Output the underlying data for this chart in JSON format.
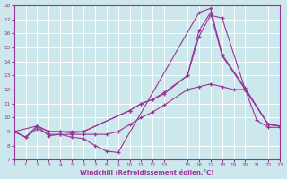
{
  "xlabel": "Windchill (Refroidissement éolien,°C)",
  "xlim": [
    0,
    23
  ],
  "ylim": [
    7,
    18
  ],
  "xticks": [
    0,
    1,
    2,
    3,
    4,
    5,
    6,
    7,
    8,
    9,
    10,
    11,
    12,
    13,
    15,
    16,
    17,
    18,
    19,
    20,
    21,
    22,
    23
  ],
  "yticks": [
    7,
    8,
    9,
    10,
    11,
    12,
    13,
    14,
    15,
    16,
    17,
    18
  ],
  "bg_color": "#cde8ec",
  "line_color": "#993399",
  "grid_color": "#ffffff",
  "lines": [
    {
      "x": [
        0,
        1,
        2,
        3,
        4,
        5,
        6,
        7,
        8,
        9,
        16,
        17,
        18,
        20,
        22,
        23
      ],
      "y": [
        9.0,
        8.6,
        9.4,
        8.7,
        8.8,
        8.6,
        8.5,
        8.0,
        7.6,
        7.5,
        17.5,
        17.8,
        14.5,
        12.1,
        9.5,
        9.4
      ]
    },
    {
      "x": [
        0,
        1,
        2,
        3,
        4,
        5,
        6,
        10,
        11,
        12,
        13,
        15,
        16,
        17,
        18,
        20,
        22,
        23
      ],
      "y": [
        9.0,
        8.6,
        9.4,
        9.0,
        9.0,
        8.9,
        9.0,
        10.5,
        11.0,
        11.3,
        11.7,
        13.0,
        15.8,
        17.3,
        17.1,
        12.0,
        9.5,
        9.4
      ]
    },
    {
      "x": [
        0,
        2,
        3,
        4,
        5,
        6,
        10,
        11,
        12,
        13,
        15,
        16,
        17,
        18,
        20,
        22,
        23
      ],
      "y": [
        9.0,
        9.4,
        9.0,
        9.0,
        9.0,
        9.0,
        10.5,
        11.0,
        11.3,
        11.8,
        13.0,
        16.2,
        17.5,
        14.4,
        12.0,
        9.5,
        9.4
      ]
    },
    {
      "x": [
        0,
        1,
        2,
        3,
        4,
        5,
        6,
        7,
        8,
        9,
        10,
        11,
        12,
        13,
        15,
        16,
        17,
        18,
        19,
        20,
        21,
        22,
        23
      ],
      "y": [
        9.0,
        8.6,
        9.2,
        8.8,
        8.8,
        8.8,
        8.8,
        8.8,
        8.8,
        9.0,
        9.5,
        10.0,
        10.4,
        10.9,
        12.0,
        12.2,
        12.4,
        12.2,
        12.0,
        12.0,
        9.8,
        9.3,
        9.3
      ]
    }
  ]
}
